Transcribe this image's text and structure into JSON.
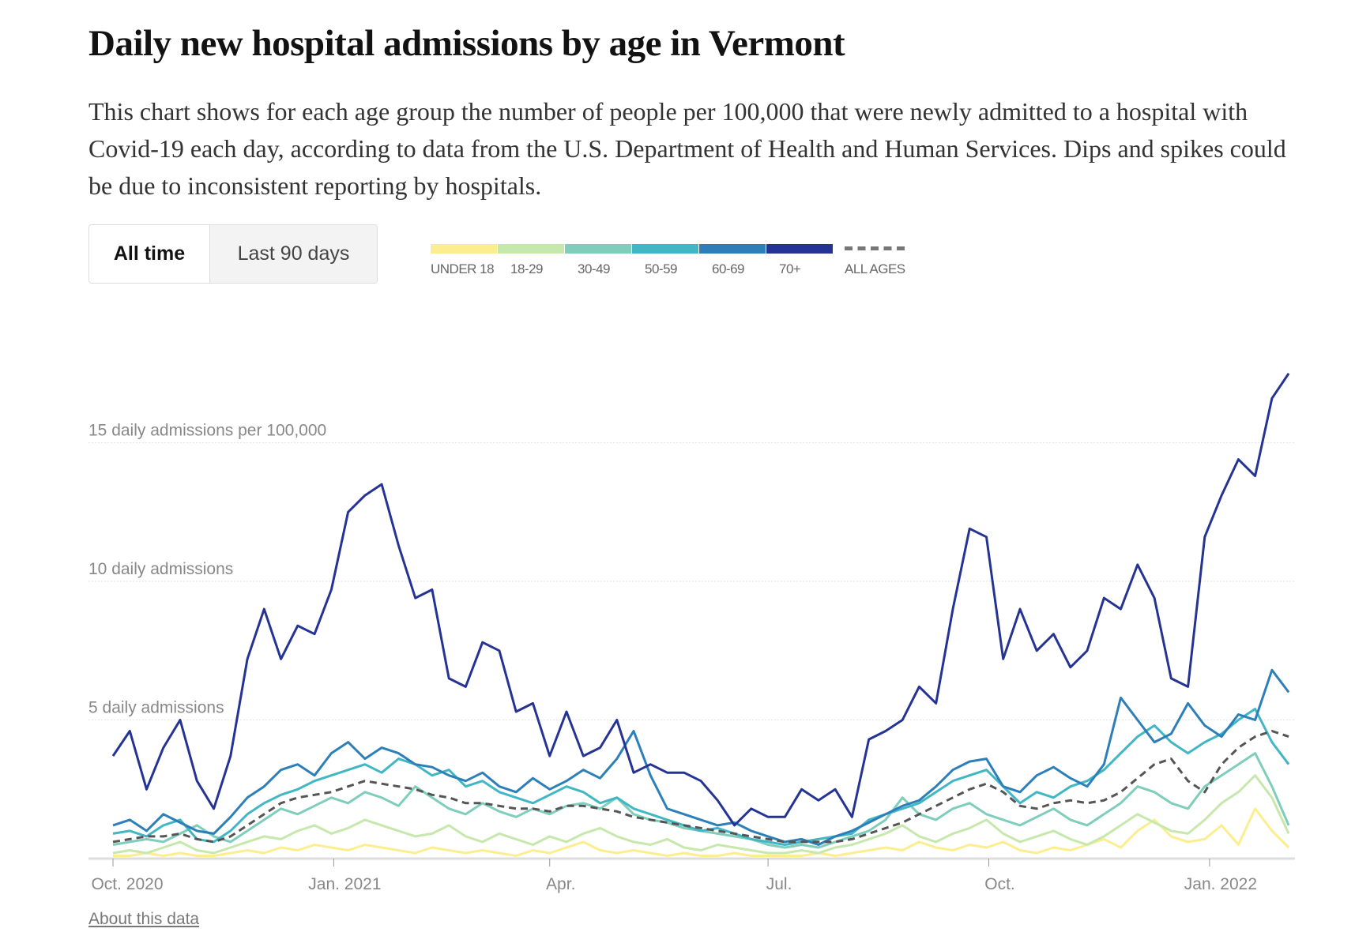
{
  "title": "Daily new hospital admissions by age in Vermont",
  "description": "This chart shows for each age group the number of people per 100,000 that were newly admitted to a hospital with Covid-19 each day, according to data from the U.S. Department of Health and Human Services. Dips and spikes could be due to inconsistent reporting by hospitals.",
  "toggle": {
    "all_time": "All time",
    "last_90": "Last 90 days",
    "selected": "All time"
  },
  "about_link": "About this data",
  "chart_data": {
    "type": "line",
    "title": "Daily new hospital admissions by age in Vermont",
    "ylabel": "daily admissions per 100,000",
    "ylim": [
      0,
      19
    ],
    "x_start": "2020-10-01",
    "x_step_days": 7,
    "y_ticks": [
      {
        "value": 5,
        "label": "5 daily admissions"
      },
      {
        "value": 10,
        "label": "10 daily admissions"
      },
      {
        "value": 15,
        "label": "15 daily admissions per 100,000"
      }
    ],
    "x_ticks": [
      {
        "day": 0,
        "label": "Oct. 2020"
      },
      {
        "day": 92,
        "label": "Jan. 2021"
      },
      {
        "day": 182,
        "label": "Apr."
      },
      {
        "day": 273,
        "label": "Jul."
      },
      {
        "day": 365,
        "label": "Oct."
      },
      {
        "day": 457,
        "label": "Jan. 2022"
      }
    ],
    "grid": true,
    "legend_position": "top-left",
    "series": [
      {
        "name": "UNDER 18",
        "color": "#fcee8f",
        "values": [
          0.1,
          0.1,
          0.2,
          0.1,
          0.2,
          0.1,
          0.1,
          0.2,
          0.3,
          0.2,
          0.4,
          0.3,
          0.5,
          0.4,
          0.3,
          0.5,
          0.4,
          0.3,
          0.2,
          0.4,
          0.3,
          0.2,
          0.3,
          0.2,
          0.1,
          0.3,
          0.2,
          0.4,
          0.6,
          0.3,
          0.2,
          0.3,
          0.2,
          0.1,
          0.2,
          0.1,
          0.1,
          0.2,
          0.1,
          0.1,
          0.1,
          0.1,
          0.2,
          0.1,
          0.2,
          0.3,
          0.4,
          0.3,
          0.6,
          0.4,
          0.3,
          0.5,
          0.4,
          0.6,
          0.3,
          0.2,
          0.4,
          0.3,
          0.5,
          0.7,
          0.4,
          1.0,
          1.4,
          0.8,
          0.6,
          0.7,
          1.2,
          0.5,
          1.8,
          1.0,
          0.4
        ]
      },
      {
        "name": "18-29",
        "color": "#c7e8ad",
        "values": [
          0.2,
          0.3,
          0.2,
          0.4,
          0.6,
          0.3,
          0.2,
          0.4,
          0.6,
          0.8,
          0.7,
          1.0,
          1.2,
          0.9,
          1.1,
          1.4,
          1.2,
          1.0,
          0.8,
          0.9,
          1.2,
          0.8,
          0.6,
          0.9,
          0.7,
          0.5,
          0.8,
          0.6,
          0.9,
          1.1,
          0.8,
          0.6,
          0.5,
          0.7,
          0.4,
          0.3,
          0.5,
          0.4,
          0.3,
          0.2,
          0.2,
          0.3,
          0.2,
          0.4,
          0.5,
          0.7,
          0.9,
          1.2,
          0.8,
          0.6,
          0.9,
          1.1,
          1.4,
          0.9,
          0.6,
          0.8,
          1.0,
          0.7,
          0.5,
          0.8,
          1.2,
          1.6,
          1.3,
          1.0,
          0.9,
          1.4,
          2.0,
          2.4,
          3.0,
          2.2,
          0.9
        ]
      },
      {
        "name": "30-49",
        "color": "#7fcdbb",
        "values": [
          0.5,
          0.6,
          0.7,
          0.6,
          0.9,
          1.2,
          0.8,
          0.6,
          1.0,
          1.4,
          1.8,
          1.6,
          1.9,
          2.2,
          2.0,
          2.4,
          2.2,
          1.9,
          2.6,
          2.2,
          1.8,
          1.6,
          2.0,
          1.7,
          1.5,
          1.8,
          1.6,
          1.9,
          2.0,
          1.8,
          2.2,
          1.6,
          1.4,
          1.3,
          1.1,
          1.0,
          0.9,
          0.8,
          0.7,
          0.5,
          0.4,
          0.5,
          0.4,
          0.6,
          0.8,
          1.0,
          1.4,
          2.2,
          1.6,
          1.4,
          1.8,
          2.0,
          1.6,
          1.4,
          1.2,
          1.5,
          1.8,
          1.4,
          1.2,
          1.6,
          2.0,
          2.6,
          2.4,
          2.0,
          1.8,
          2.6,
          3.0,
          3.4,
          3.8,
          2.6,
          1.2
        ]
      },
      {
        "name": "50-59",
        "color": "#41b6c4",
        "values": [
          0.9,
          1.0,
          0.8,
          1.2,
          1.4,
          0.7,
          0.6,
          1.0,
          1.6,
          2.0,
          2.3,
          2.5,
          2.8,
          3.0,
          3.2,
          3.4,
          3.1,
          3.6,
          3.4,
          3.0,
          3.2,
          2.6,
          2.8,
          2.4,
          2.2,
          2.0,
          2.3,
          2.6,
          2.4,
          2.0,
          2.2,
          1.8,
          1.6,
          1.4,
          1.2,
          1.0,
          1.1,
          0.9,
          0.7,
          0.6,
          0.5,
          0.6,
          0.7,
          0.8,
          0.9,
          1.4,
          1.6,
          1.8,
          2.0,
          2.4,
          2.8,
          3.0,
          3.2,
          2.6,
          2.0,
          2.4,
          2.2,
          2.6,
          2.8,
          3.2,
          3.8,
          4.4,
          4.8,
          4.2,
          3.8,
          4.2,
          4.5,
          5.0,
          5.4,
          4.2,
          3.4
        ]
      },
      {
        "name": "60-69",
        "color": "#2c7fb8",
        "values": [
          1.2,
          1.4,
          1.0,
          1.6,
          1.3,
          1.0,
          0.9,
          1.5,
          2.2,
          2.6,
          3.2,
          3.4,
          3.0,
          3.8,
          4.2,
          3.6,
          4.0,
          3.8,
          3.4,
          3.3,
          3.0,
          2.8,
          3.1,
          2.6,
          2.4,
          2.9,
          2.5,
          2.8,
          3.2,
          2.9,
          3.6,
          4.6,
          3.0,
          1.8,
          1.6,
          1.4,
          1.2,
          1.3,
          1.0,
          0.8,
          0.6,
          0.7,
          0.5,
          0.8,
          1.0,
          1.3,
          1.6,
          1.9,
          2.1,
          2.6,
          3.2,
          3.5,
          3.6,
          2.6,
          2.4,
          3.0,
          3.3,
          2.9,
          2.6,
          3.4,
          5.8,
          5.0,
          4.2,
          4.5,
          5.6,
          4.8,
          4.4,
          5.2,
          5.0,
          6.8,
          6.0
        ]
      },
      {
        "name": "70+",
        "color": "#253494",
        "values": [
          3.7,
          4.6,
          2.5,
          4.0,
          5.0,
          2.8,
          1.8,
          3.7,
          7.2,
          9.0,
          7.2,
          8.4,
          8.1,
          9.7,
          12.5,
          13.1,
          13.5,
          11.3,
          9.4,
          9.7,
          6.5,
          6.2,
          7.8,
          7.5,
          5.3,
          5.6,
          3.7,
          5.3,
          3.7,
          4.0,
          5.0,
          3.1,
          3.4,
          3.1,
          3.1,
          2.8,
          2.1,
          1.2,
          1.8,
          1.5,
          1.5,
          2.5,
          2.1,
          2.5,
          1.5,
          4.3,
          4.6,
          5.0,
          6.2,
          5.6,
          9.0,
          11.9,
          11.6,
          7.2,
          9.0,
          7.5,
          8.1,
          6.9,
          7.5,
          9.4,
          9.0,
          10.6,
          9.4,
          6.5,
          6.2,
          11.6,
          13.1,
          14.4,
          13.8,
          16.6,
          17.5
        ]
      },
      {
        "name": "ALL AGES",
        "color": "#555555",
        "dashed": true,
        "values": [
          0.6,
          0.7,
          0.8,
          0.8,
          0.9,
          0.7,
          0.6,
          0.8,
          1.2,
          1.6,
          2.0,
          2.2,
          2.3,
          2.4,
          2.6,
          2.8,
          2.7,
          2.6,
          2.5,
          2.3,
          2.2,
          2.0,
          2.0,
          1.9,
          1.8,
          1.8,
          1.7,
          1.9,
          1.9,
          1.8,
          1.7,
          1.5,
          1.4,
          1.3,
          1.2,
          1.1,
          1.0,
          0.9,
          0.8,
          0.7,
          0.6,
          0.6,
          0.6,
          0.6,
          0.7,
          0.9,
          1.1,
          1.3,
          1.6,
          1.9,
          2.2,
          2.5,
          2.7,
          2.4,
          1.9,
          1.8,
          2.0,
          2.1,
          2.0,
          2.1,
          2.4,
          2.9,
          3.4,
          3.6,
          2.8,
          2.4,
          3.4,
          4.0,
          4.4,
          4.6,
          4.4
        ]
      }
    ]
  }
}
